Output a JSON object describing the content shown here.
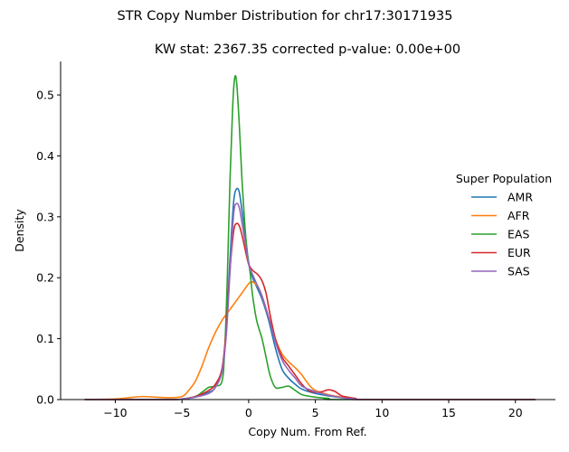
{
  "chart_data": {
    "type": "line",
    "suptitle": "STR Copy Number Distribution for chr17:30171935",
    "title": "KW stat: 2367.35    corrected p-value: 0.00e+00",
    "xlabel": "Copy Num. From Ref.",
    "ylabel": "Density",
    "xlim": [
      -14.1,
      23.0
    ],
    "ylim": [
      0,
      0.555
    ],
    "xticks": [
      -10,
      -5,
      0,
      5,
      10,
      15,
      20
    ],
    "xtick_labels": [
      "−10",
      "−5",
      "0",
      "5",
      "10",
      "15",
      "20"
    ],
    "yticks": [
      0.0,
      0.1,
      0.2,
      0.3,
      0.4,
      0.5
    ],
    "ytick_labels": [
      "0.0",
      "0.1",
      "0.2",
      "0.3",
      "0.4",
      "0.5"
    ],
    "legend_title": "Super Population",
    "legend_position": "right",
    "series": [
      {
        "name": "AMR",
        "color": "#1f77b4",
        "points": [
          [
            -12.3,
            0
          ],
          [
            -6,
            0
          ],
          [
            -5,
            0.001
          ],
          [
            -4,
            0.004
          ],
          [
            -3,
            0.012
          ],
          [
            -2.5,
            0.02
          ],
          [
            -2,
            0.05
          ],
          [
            -1.7,
            0.11
          ],
          [
            -1.5,
            0.19
          ],
          [
            -1.3,
            0.27
          ],
          [
            -1.1,
            0.33
          ],
          [
            -0.9,
            0.346
          ],
          [
            -0.7,
            0.34
          ],
          [
            -0.5,
            0.31
          ],
          [
            -0.2,
            0.26
          ],
          [
            0,
            0.225
          ],
          [
            0.3,
            0.2
          ],
          [
            0.6,
            0.185
          ],
          [
            1,
            0.165
          ],
          [
            1.5,
            0.13
          ],
          [
            2,
            0.085
          ],
          [
            2.5,
            0.05
          ],
          [
            3,
            0.035
          ],
          [
            3.5,
            0.025
          ],
          [
            4,
            0.017
          ],
          [
            5,
            0.01
          ],
          [
            6,
            0.006
          ],
          [
            7,
            0.003
          ],
          [
            8,
            0.001
          ],
          [
            9,
            0
          ],
          [
            21.5,
            0
          ]
        ]
      },
      {
        "name": "AFR",
        "color": "#ff7f0e",
        "points": [
          [
            -12.3,
            0
          ],
          [
            -10,
            0.001
          ],
          [
            -9,
            0.003
          ],
          [
            -8,
            0.005
          ],
          [
            -7,
            0.004
          ],
          [
            -6,
            0.003
          ],
          [
            -5,
            0.005
          ],
          [
            -4.5,
            0.015
          ],
          [
            -4,
            0.03
          ],
          [
            -3.5,
            0.055
          ],
          [
            -3,
            0.085
          ],
          [
            -2.5,
            0.11
          ],
          [
            -2,
            0.13
          ],
          [
            -1.5,
            0.145
          ],
          [
            -1,
            0.16
          ],
          [
            -0.5,
            0.175
          ],
          [
            0,
            0.19
          ],
          [
            0.3,
            0.193
          ],
          [
            0.7,
            0.185
          ],
          [
            1,
            0.17
          ],
          [
            1.5,
            0.135
          ],
          [
            2,
            0.1
          ],
          [
            2.5,
            0.075
          ],
          [
            3,
            0.062
          ],
          [
            3.5,
            0.052
          ],
          [
            4,
            0.04
          ],
          [
            4.5,
            0.025
          ],
          [
            5,
            0.015
          ],
          [
            6,
            0.008
          ],
          [
            7,
            0.004
          ],
          [
            8,
            0.002
          ],
          [
            9,
            0
          ],
          [
            21.5,
            0
          ]
        ]
      },
      {
        "name": "EAS",
        "color": "#2ca02c",
        "points": [
          [
            -12.3,
            0
          ],
          [
            -6,
            0
          ],
          [
            -5,
            0.001
          ],
          [
            -4,
            0.005
          ],
          [
            -3.5,
            0.012
          ],
          [
            -3,
            0.02
          ],
          [
            -2.5,
            0.022
          ],
          [
            -2,
            0.03
          ],
          [
            -1.8,
            0.08
          ],
          [
            -1.6,
            0.2
          ],
          [
            -1.4,
            0.36
          ],
          [
            -1.2,
            0.48
          ],
          [
            -1.05,
            0.528
          ],
          [
            -0.9,
            0.52
          ],
          [
            -0.7,
            0.45
          ],
          [
            -0.5,
            0.36
          ],
          [
            -0.3,
            0.29
          ],
          [
            -0.1,
            0.24
          ],
          [
            0.1,
            0.21
          ],
          [
            0.3,
            0.17
          ],
          [
            0.6,
            0.13
          ],
          [
            1,
            0.1
          ],
          [
            1.3,
            0.07
          ],
          [
            1.6,
            0.04
          ],
          [
            2,
            0.02
          ],
          [
            2.5,
            0.02
          ],
          [
            3,
            0.022
          ],
          [
            3.5,
            0.015
          ],
          [
            4,
            0.008
          ],
          [
            5,
            0.004
          ],
          [
            6,
            0.002
          ],
          [
            7,
            0
          ],
          [
            21.5,
            0
          ]
        ]
      },
      {
        "name": "EUR",
        "color": "#d62728",
        "points": [
          [
            -12.3,
            0
          ],
          [
            -6,
            0
          ],
          [
            -5,
            0.001
          ],
          [
            -4,
            0.005
          ],
          [
            -3,
            0.015
          ],
          [
            -2.5,
            0.025
          ],
          [
            -2,
            0.05
          ],
          [
            -1.7,
            0.11
          ],
          [
            -1.5,
            0.18
          ],
          [
            -1.3,
            0.24
          ],
          [
            -1.1,
            0.28
          ],
          [
            -0.9,
            0.289
          ],
          [
            -0.7,
            0.285
          ],
          [
            -0.5,
            0.27
          ],
          [
            -0.2,
            0.24
          ],
          [
            0,
            0.222
          ],
          [
            0.3,
            0.212
          ],
          [
            0.7,
            0.205
          ],
          [
            1,
            0.195
          ],
          [
            1.3,
            0.175
          ],
          [
            1.6,
            0.14
          ],
          [
            2,
            0.1
          ],
          [
            2.5,
            0.07
          ],
          [
            3,
            0.055
          ],
          [
            3.5,
            0.04
          ],
          [
            4,
            0.025
          ],
          [
            4.5,
            0.015
          ],
          [
            5,
            0.012
          ],
          [
            5.5,
            0.013
          ],
          [
            6,
            0.016
          ],
          [
            6.5,
            0.013
          ],
          [
            7,
            0.006
          ],
          [
            8,
            0.002
          ],
          [
            9,
            0
          ],
          [
            21.5,
            0
          ]
        ]
      },
      {
        "name": "SAS",
        "color": "#9467bd",
        "points": [
          [
            -12.3,
            0
          ],
          [
            -6,
            0
          ],
          [
            -5,
            0.001
          ],
          [
            -4,
            0.004
          ],
          [
            -3,
            0.01
          ],
          [
            -2.5,
            0.02
          ],
          [
            -2,
            0.045
          ],
          [
            -1.7,
            0.1
          ],
          [
            -1.5,
            0.17
          ],
          [
            -1.3,
            0.25
          ],
          [
            -1.1,
            0.31
          ],
          [
            -0.9,
            0.322
          ],
          [
            -0.7,
            0.315
          ],
          [
            -0.5,
            0.29
          ],
          [
            -0.2,
            0.25
          ],
          [
            0,
            0.222
          ],
          [
            0.3,
            0.205
          ],
          [
            0.6,
            0.19
          ],
          [
            1,
            0.17
          ],
          [
            1.5,
            0.135
          ],
          [
            2,
            0.095
          ],
          [
            2.5,
            0.065
          ],
          [
            3,
            0.048
          ],
          [
            3.5,
            0.035
          ],
          [
            4,
            0.022
          ],
          [
            5,
            0.013
          ],
          [
            6,
            0.007
          ],
          [
            7,
            0.003
          ],
          [
            8,
            0.001
          ],
          [
            9,
            0
          ],
          [
            21.5,
            0
          ]
        ]
      }
    ]
  }
}
